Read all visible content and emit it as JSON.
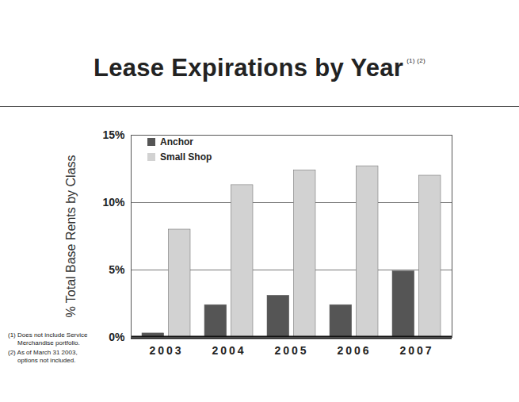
{
  "chart_data": {
    "type": "bar",
    "title": "Lease Expirations by Year",
    "title_notes": "(1) (2)",
    "y_label": "% Total Base Rents by Class",
    "categories": [
      "2003",
      "2004",
      "2005",
      "2006",
      "2007"
    ],
    "series": [
      {
        "name": "Anchor",
        "color": "#555555",
        "values": [
          0.3,
          2.4,
          3.1,
          2.4,
          4.9
        ]
      },
      {
        "name": "Small Shop",
        "color": "#d2d2d2",
        "values": [
          8.0,
          11.3,
          12.4,
          12.7,
          12.0
        ]
      }
    ],
    "ylim": [
      0,
      15
    ],
    "yticks": [
      {
        "value": 0,
        "label": "0%"
      },
      {
        "value": 5,
        "label": "5%"
      },
      {
        "value": 10,
        "label": "10%"
      },
      {
        "value": 15,
        "label": "15%"
      }
    ],
    "grid": true,
    "legend": "top-left",
    "footnotes": [
      "(1) Does not include Service Merchandise portfolio.",
      "(2) As of March 31 2003, options not included."
    ]
  }
}
